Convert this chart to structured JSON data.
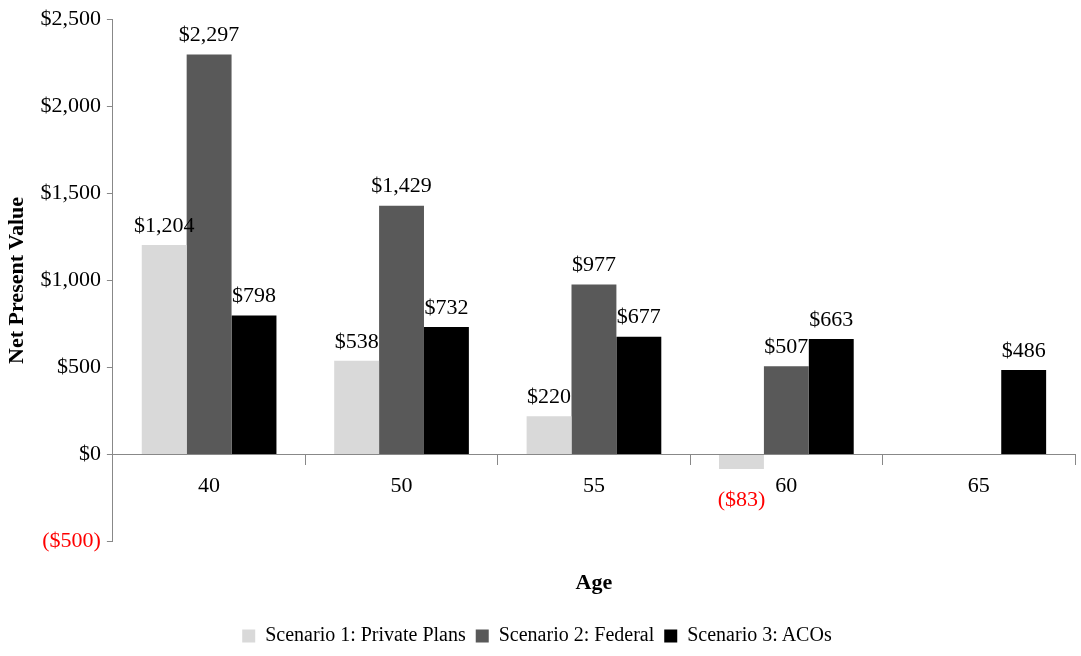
{
  "chart_data": {
    "type": "bar",
    "xlabel": "Age",
    "ylabel": "Net Present Value",
    "categories": [
      "40",
      "50",
      "55",
      "60",
      "65"
    ],
    "series": [
      {
        "name": "Scenario 1: Private Plans",
        "color": "#d9d9d9",
        "values": [
          1204,
          538,
          220,
          -83,
          null
        ],
        "value_labels": [
          "$1,204",
          "$538",
          "$220",
          "($83)",
          null
        ]
      },
      {
        "name": "Scenario 2: Federal",
        "color": "#595959",
        "values": [
          2297,
          1429,
          977,
          507,
          null
        ],
        "value_labels": [
          "$2,297",
          "$1,429",
          "$977",
          "$507",
          null
        ]
      },
      {
        "name": "Scenario 3: ACOs",
        "color": "#000000",
        "values": [
          798,
          732,
          677,
          663,
          486
        ],
        "value_labels": [
          "$798",
          "$732",
          "$677",
          "$663",
          "$486"
        ]
      }
    ],
    "ylim": [
      -500,
      2500
    ],
    "yticks": [
      {
        "value": -500,
        "label": "($500)"
      },
      {
        "value": 0,
        "label": "$0"
      },
      {
        "value": 500,
        "label": "$500"
      },
      {
        "value": 1000,
        "label": "$1,000"
      },
      {
        "value": 1500,
        "label": "$1,500"
      },
      {
        "value": 2000,
        "label": "$2,000"
      },
      {
        "value": 2500,
        "label": "$2,500"
      }
    ],
    "grid": false,
    "legend": "bottom"
  }
}
